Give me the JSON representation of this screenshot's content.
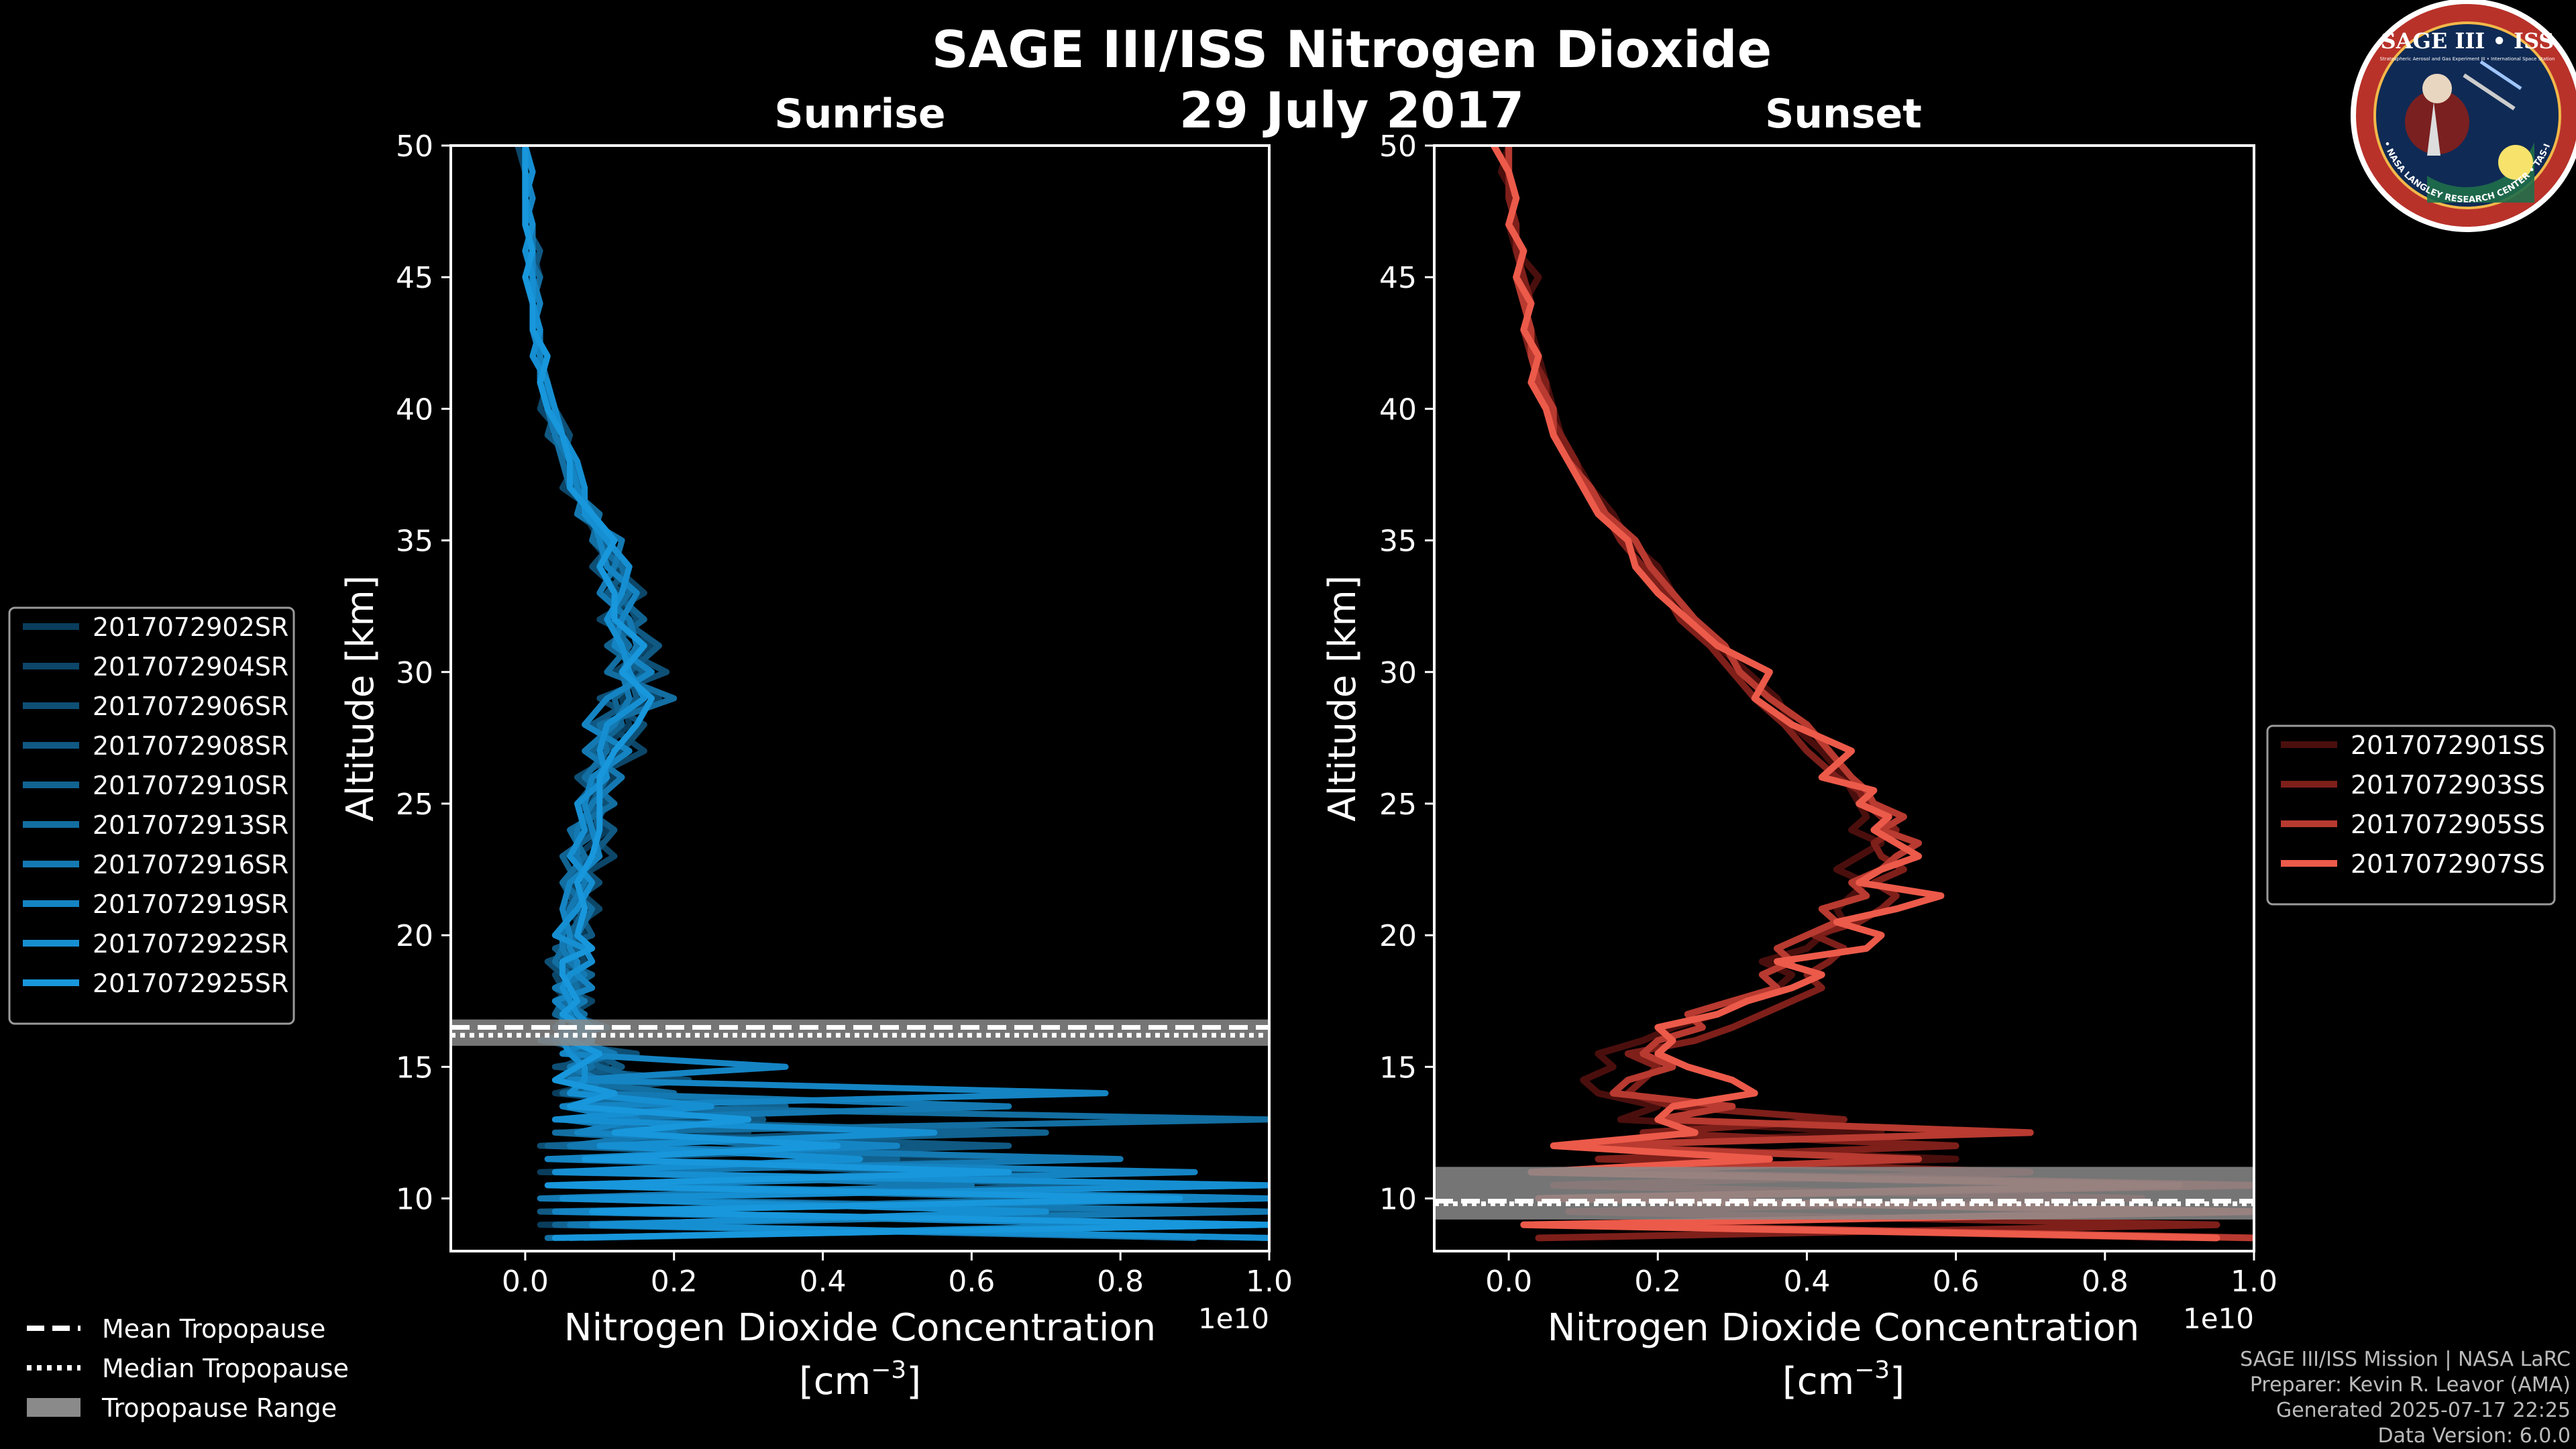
{
  "title": "SAGE III/ISS Nitrogen Dioxide",
  "date": "29 July 2017",
  "logo": {
    "text": "SAGE III • ISS",
    "ring_text": "BALL • NASA LANGLEY RESEARCH CENTER • TAS-I • ESA",
    "sub_text": "Stratospheric Aerosol and Gas Experiment III • International Space Station"
  },
  "credits": [
    "SAGE III/ISS Mission | NASA LaRC",
    "Preparer: Kevin R. Leavor (AMA)",
    "Generated 2025-07-17 22:25",
    "Data Version: 6.0.0"
  ],
  "tropopause_legend": [
    {
      "label": "Mean Tropopause",
      "style": "dashed"
    },
    {
      "label": "Median Tropopause",
      "style": "dotted"
    },
    {
      "label": "Tropopause Range",
      "style": "band"
    }
  ],
  "colors": {
    "background": "#000000",
    "sunrise_series": [
      "#0a3d5c",
      "#0c4668",
      "#0e4f75",
      "#105983",
      "#116391",
      "#136ea1",
      "#1479b2",
      "#1584c3",
      "#168fd2",
      "#1897dc"
    ],
    "sunset_series": [
      "#4a0f0d",
      "#7e1f1a",
      "#b83a30",
      "#ec5a4a"
    ],
    "tropo_band": "#8a8a8a"
  },
  "chart_data": [
    {
      "type": "line",
      "panel": "left",
      "subtitle": "Sunrise",
      "xlabel": "Nitrogen Dioxide Concentration",
      "xunit": "[cm",
      "xunit_exp": "−3",
      "xunit_close": "]",
      "ylabel": "Altitude [km]",
      "offset_label": "1e10",
      "xlim": [
        -0.1,
        1.0
      ],
      "ylim": [
        8,
        50
      ],
      "xticks": [
        0.0,
        0.2,
        0.4,
        0.6,
        0.8,
        1.0
      ],
      "xtick_labels": [
        "0.0",
        "0.2",
        "0.4",
        "0.6",
        "0.8",
        "1.0"
      ],
      "yticks": [
        10,
        15,
        20,
        25,
        30,
        35,
        40,
        45,
        50
      ],
      "tropopause": {
        "min": 15.8,
        "max": 16.8,
        "mean": 16.5,
        "median": 16.2
      },
      "series_names": [
        "2017072902SR",
        "2017072904SR",
        "2017072906SR",
        "2017072908SR",
        "2017072910SR",
        "2017072913SR",
        "2017072916SR",
        "2017072919SR",
        "2017072922SR",
        "2017072925SR"
      ],
      "altitudes": [
        8.5,
        9,
        9.5,
        10,
        10.5,
        11,
        11.5,
        12,
        12.5,
        13,
        13.5,
        14,
        14.5,
        15,
        15.5,
        16,
        16.5,
        17,
        17.5,
        18,
        18.5,
        19,
        19.5,
        20,
        21,
        22,
        23,
        24,
        25,
        26,
        27,
        28,
        29,
        30,
        31,
        32,
        33,
        34,
        35,
        36,
        37,
        38,
        39,
        40,
        41,
        42,
        43,
        44,
        45,
        46,
        47,
        48,
        49,
        50
      ],
      "series": [
        {
          "name": "2017072902SR",
          "values": [
            1.0,
            0.02,
            1.0,
            0.1,
            0.95,
            0.02,
            0.6,
            0.05,
            0.3,
            0.08,
            0.2,
            0.04,
            0.12,
            0.05,
            0.09,
            0.03,
            0.07,
            0.05,
            0.06,
            0.04,
            0.07,
            0.05,
            0.06,
            0.08,
            0.06,
            0.09,
            0.07,
            0.11,
            0.08,
            0.12,
            0.1,
            0.14,
            0.13,
            0.15,
            0.13,
            0.12,
            0.14,
            0.11,
            0.1,
            0.08,
            0.07,
            0.06,
            0.04,
            0.03,
            0.02,
            0.02,
            0.01,
            0.02,
            0.01,
            0.0,
            0.01,
            0.0,
            0.0,
            0.0
          ]
        },
        {
          "name": "2017072904SR",
          "values": [
            0.05,
            1.0,
            0.08,
            0.9,
            0.05,
            0.7,
            0.04,
            0.4,
            0.06,
            0.25,
            0.05,
            0.15,
            0.07,
            0.11,
            0.06,
            0.08,
            0.04,
            0.06,
            0.09,
            0.05,
            0.04,
            0.08,
            0.07,
            0.05,
            0.1,
            0.06,
            0.12,
            0.08,
            0.1,
            0.09,
            0.16,
            0.11,
            0.18,
            0.12,
            0.17,
            0.1,
            0.16,
            0.12,
            0.09,
            0.1,
            0.05,
            0.07,
            0.05,
            0.02,
            0.03,
            0.01,
            0.02,
            0.01,
            0.02,
            0.01,
            0.0,
            0.01,
            0.0,
            -0.01
          ]
        },
        {
          "name": "2017072906SR",
          "values": [
            1.0,
            0.1,
            0.85,
            0.03,
            1.0,
            0.06,
            0.75,
            0.02,
            0.45,
            0.1,
            0.18,
            0.06,
            0.22,
            0.04,
            0.15,
            0.02,
            0.11,
            0.06,
            0.04,
            0.07,
            0.05,
            0.03,
            0.08,
            0.06,
            0.05,
            0.1,
            0.06,
            0.09,
            0.11,
            0.07,
            0.13,
            0.16,
            0.1,
            0.19,
            0.12,
            0.15,
            0.13,
            0.09,
            0.12,
            0.07,
            0.08,
            0.05,
            0.06,
            0.04,
            0.02,
            0.03,
            0.01,
            0.02,
            0.0,
            0.01,
            0.01,
            0.0,
            0.01,
            0.0
          ]
        },
        {
          "name": "2017072908SR",
          "values": [
            0.08,
            0.95,
            0.02,
            1.0,
            0.1,
            0.55,
            0.03,
            0.65,
            0.05,
            0.32,
            0.08,
            0.18,
            0.05,
            0.13,
            0.09,
            0.05,
            0.08,
            0.04,
            0.07,
            0.08,
            0.05,
            0.06,
            0.04,
            0.09,
            0.07,
            0.05,
            0.09,
            0.12,
            0.07,
            0.1,
            0.12,
            0.09,
            0.15,
            0.14,
            0.18,
            0.13,
            0.11,
            0.14,
            0.1,
            0.09,
            0.06,
            0.07,
            0.03,
            0.04,
            0.02,
            0.02,
            0.02,
            0.01,
            0.01,
            0.02,
            0.0,
            0.0,
            0.01,
            0.0
          ]
        },
        {
          "name": "2017072910SR",
          "values": [
            1.0,
            0.04,
            0.9,
            0.06,
            0.8,
            0.12,
            0.5,
            0.03,
            0.7,
            0.06,
            0.35,
            0.05,
            0.16,
            0.1,
            0.07,
            0.06,
            0.1,
            0.04,
            0.05,
            0.06,
            0.09,
            0.05,
            0.07,
            0.06,
            0.08,
            0.07,
            0.05,
            0.1,
            0.09,
            0.11,
            0.09,
            0.13,
            0.12,
            0.16,
            0.11,
            0.16,
            0.12,
            0.1,
            0.11,
            0.08,
            0.07,
            0.06,
            0.05,
            0.03,
            0.03,
            0.02,
            0.01,
            0.02,
            0.01,
            0.01,
            0.0,
            0.01,
            0.0,
            0.0
          ]
        },
        {
          "name": "2017072913SR",
          "values": [
            0.03,
            1.0,
            0.06,
            0.75,
            0.04,
            0.6,
            0.07,
            0.35,
            0.04,
            1.0,
            0.07,
            0.2,
            0.05,
            0.09,
            0.08,
            0.04,
            0.06,
            0.08,
            0.05,
            0.07,
            0.06,
            0.04,
            0.05,
            0.07,
            0.09,
            0.05,
            0.08,
            0.06,
            0.12,
            0.08,
            0.11,
            0.1,
            0.2,
            0.11,
            0.14,
            0.11,
            0.14,
            0.13,
            0.09,
            0.1,
            0.06,
            0.05,
            0.04,
            0.04,
            0.02,
            0.03,
            0.01,
            0.01,
            0.02,
            0.0,
            0.01,
            0.0,
            0.0,
            0.0
          ]
        },
        {
          "name": "2017072916SR",
          "values": [
            0.9,
            0.06,
            1.0,
            0.02,
            0.6,
            0.09,
            0.8,
            0.06,
            0.2,
            0.05,
            0.65,
            0.08,
            0.1,
            0.06,
            0.12,
            0.07,
            0.05,
            0.05,
            0.08,
            0.04,
            0.08,
            0.06,
            0.05,
            0.05,
            0.06,
            0.08,
            0.07,
            0.07,
            0.09,
            0.13,
            0.08,
            0.12,
            0.14,
            0.13,
            0.15,
            0.14,
            0.1,
            0.12,
            0.13,
            0.07,
            0.08,
            0.06,
            0.04,
            0.03,
            0.03,
            0.02,
            0.02,
            0.01,
            0.01,
            0.01,
            0.01,
            0.0,
            0.0,
            0.0
          ]
        },
        {
          "name": "2017072919SR",
          "values": [
            0.06,
            0.85,
            0.04,
            1.0,
            0.08,
            0.9,
            0.03,
            0.5,
            0.07,
            0.15,
            0.05,
            0.78,
            0.06,
            0.35,
            0.05,
            0.09,
            0.07,
            0.06,
            0.04,
            0.09,
            0.07,
            0.07,
            0.06,
            0.06,
            0.05,
            0.06,
            0.1,
            0.09,
            0.08,
            0.09,
            0.14,
            0.08,
            0.11,
            0.17,
            0.12,
            0.13,
            0.15,
            0.11,
            0.1,
            0.09,
            0.07,
            0.06,
            0.05,
            0.03,
            0.02,
            0.02,
            0.01,
            0.02,
            0.01,
            0.01,
            0.0,
            0.01,
            0.0,
            0.0
          ]
        },
        {
          "name": "2017072922SR",
          "values": [
            1.0,
            0.09,
            0.7,
            0.05,
            1.0,
            0.04,
            0.45,
            0.1,
            0.55,
            0.04,
            0.25,
            0.06,
            0.08,
            0.08,
            0.06,
            0.05,
            0.09,
            0.07,
            0.06,
            0.05,
            0.06,
            0.09,
            0.08,
            0.04,
            0.07,
            0.09,
            0.06,
            0.08,
            0.07,
            0.11,
            0.1,
            0.11,
            0.16,
            0.14,
            0.13,
            0.11,
            0.13,
            0.14,
            0.11,
            0.08,
            0.08,
            0.07,
            0.05,
            0.04,
            0.03,
            0.01,
            0.02,
            0.01,
            0.01,
            0.0,
            0.01,
            0.0,
            0.01,
            0.0
          ]
        },
        {
          "name": "2017072925SR",
          "values": [
            0.04,
            1.0,
            0.09,
            0.88,
            0.03,
            0.65,
            0.08,
            0.42,
            0.12,
            0.3,
            0.06,
            0.12,
            0.04,
            0.07,
            0.1,
            0.06,
            0.08,
            0.05,
            0.07,
            0.06,
            0.05,
            0.05,
            0.09,
            0.07,
            0.08,
            0.07,
            0.09,
            0.1,
            0.1,
            0.1,
            0.12,
            0.15,
            0.17,
            0.13,
            0.16,
            0.12,
            0.12,
            0.1,
            0.12,
            0.09,
            0.06,
            0.06,
            0.05,
            0.03,
            0.02,
            0.03,
            0.01,
            0.01,
            0.0,
            0.01,
            0.0,
            0.0,
            0.0,
            0.0
          ]
        }
      ]
    },
    {
      "type": "line",
      "panel": "right",
      "subtitle": "Sunset",
      "xlabel": "Nitrogen Dioxide Concentration",
      "xunit": "[cm",
      "xunit_exp": "−3",
      "xunit_close": "]",
      "ylabel": "Altitude [km]",
      "offset_label": "1e10",
      "xlim": [
        -0.1,
        1.0
      ],
      "ylim": [
        8,
        50
      ],
      "xticks": [
        0.0,
        0.2,
        0.4,
        0.6,
        0.8,
        1.0
      ],
      "xtick_labels": [
        "0.0",
        "0.2",
        "0.4",
        "0.6",
        "0.8",
        "1.0"
      ],
      "yticks": [
        10,
        15,
        20,
        25,
        30,
        35,
        40,
        45,
        50
      ],
      "tropopause": {
        "min": 9.2,
        "max": 11.2,
        "mean": 9.9,
        "median": 9.8
      },
      "series_names": [
        "2017072901SS",
        "2017072903SS",
        "2017072905SS",
        "2017072907SS"
      ],
      "altitudes": [
        8.5,
        9,
        9.5,
        10,
        10.5,
        11,
        11.5,
        12,
        12.5,
        13,
        13.5,
        14,
        14.5,
        15,
        15.5,
        16,
        16.5,
        17,
        17.5,
        18,
        18.5,
        19,
        19.5,
        20,
        20.5,
        21,
        21.5,
        22,
        22.5,
        23,
        23.5,
        24,
        24.5,
        25,
        25.5,
        26,
        27,
        28,
        29,
        30,
        31,
        32,
        33,
        34,
        35,
        36,
        37,
        38,
        39,
        40,
        41,
        42,
        43,
        44,
        45,
        46,
        47,
        48,
        49,
        50
      ],
      "series": [
        {
          "name": "2017072901SS",
          "values": [
            0.9,
            0.05,
            1.0,
            0.1,
            0.8,
            0.05,
            0.6,
            0.1,
            0.5,
            0.15,
            0.2,
            0.12,
            0.1,
            0.14,
            0.12,
            0.18,
            0.22,
            0.28,
            0.32,
            0.36,
            0.38,
            0.34,
            0.4,
            0.42,
            0.45,
            0.44,
            0.46,
            0.48,
            0.44,
            0.47,
            0.5,
            0.46,
            0.48,
            0.47,
            0.46,
            0.45,
            0.42,
            0.38,
            0.36,
            0.32,
            0.28,
            0.24,
            0.22,
            0.2,
            0.16,
            0.14,
            0.11,
            0.09,
            0.07,
            0.06,
            0.05,
            0.04,
            0.03,
            0.02,
            0.04,
            0.01,
            0.0,
            0.01,
            -0.01,
            0.0
          ]
        },
        {
          "name": "2017072903SS",
          "values": [
            0.04,
            0.95,
            0.08,
            0.85,
            0.06,
            0.7,
            0.12,
            0.6,
            0.18,
            0.45,
            0.22,
            0.16,
            0.18,
            0.2,
            0.16,
            0.25,
            0.3,
            0.34,
            0.38,
            0.42,
            0.4,
            0.43,
            0.45,
            0.41,
            0.47,
            0.5,
            0.52,
            0.49,
            0.53,
            0.5,
            0.49,
            0.52,
            0.5,
            0.48,
            0.47,
            0.44,
            0.4,
            0.37,
            0.33,
            0.3,
            0.27,
            0.23,
            0.21,
            0.18,
            0.15,
            0.13,
            0.1,
            0.09,
            0.07,
            0.05,
            0.05,
            0.03,
            0.02,
            0.03,
            0.02,
            0.01,
            0.01,
            0.0,
            0.0,
            0.0
          ]
        },
        {
          "name": "2017072905SS",
          "values": [
            1.0,
            0.1,
            0.9,
            0.06,
            1.0,
            0.12,
            0.55,
            0.08,
            0.7,
            0.2,
            0.3,
            0.14,
            0.16,
            0.22,
            0.18,
            0.2,
            0.26,
            0.24,
            0.3,
            0.36,
            0.34,
            0.38,
            0.36,
            0.4,
            0.44,
            0.42,
            0.48,
            0.46,
            0.5,
            0.52,
            0.55,
            0.5,
            0.53,
            0.49,
            0.48,
            0.46,
            0.43,
            0.4,
            0.35,
            0.31,
            0.29,
            0.25,
            0.22,
            0.19,
            0.17,
            0.13,
            0.11,
            0.08,
            0.06,
            0.06,
            0.04,
            0.03,
            0.03,
            0.02,
            0.01,
            0.02,
            0.0,
            0.01,
            0.0,
            0.0
          ]
        },
        {
          "name": "2017072907SS",
          "values": [
            0.95,
            0.02,
            1.0,
            0.04,
            0.9,
            0.03,
            0.35,
            0.06,
            0.25,
            0.2,
            0.22,
            0.33,
            0.3,
            0.24,
            0.2,
            0.22,
            0.2,
            0.28,
            0.32,
            0.38,
            0.42,
            0.36,
            0.48,
            0.5,
            0.44,
            0.52,
            0.58,
            0.47,
            0.5,
            0.55,
            0.52,
            0.49,
            0.51,
            0.47,
            0.49,
            0.42,
            0.46,
            0.38,
            0.33,
            0.35,
            0.28,
            0.24,
            0.2,
            0.17,
            0.16,
            0.12,
            0.1,
            0.08,
            0.06,
            0.05,
            0.03,
            0.04,
            0.02,
            0.03,
            0.01,
            0.02,
            0.0,
            0.01,
            0.0,
            -0.02
          ]
        }
      ]
    }
  ]
}
